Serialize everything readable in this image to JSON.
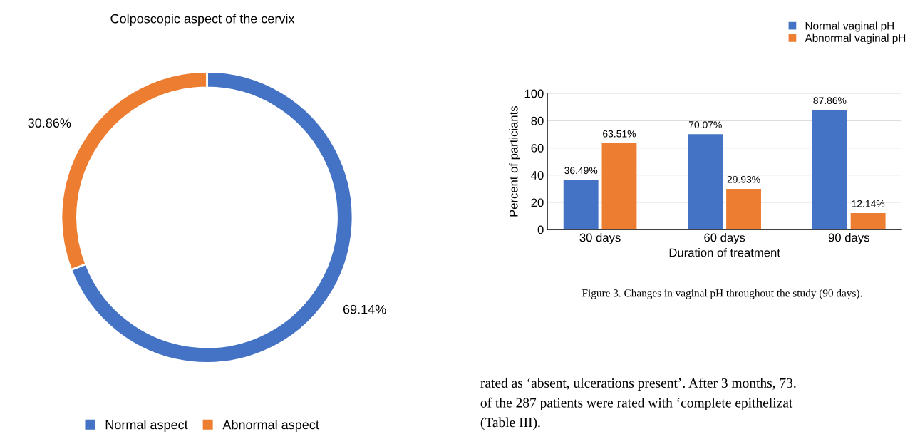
{
  "chart_data": [
    {
      "type": "donut",
      "title": "Colposcopic aspect of the cervix",
      "categories": [
        "Normal aspect",
        "Abnormal aspect"
      ],
      "values": [
        69.14,
        30.86
      ],
      "colors": [
        "#4472c4",
        "#ed7d31"
      ],
      "value_labels": [
        "69.14%",
        "30.86%"
      ],
      "legend": "bottom"
    },
    {
      "type": "bar",
      "categories": [
        "30 days",
        "60 days",
        "90 days"
      ],
      "xlabel": "Duration of treatment",
      "ylabel": "Percent of particiants",
      "ylim": [
        0,
        100
      ],
      "yticks": [
        0,
        20,
        40,
        60,
        80,
        100
      ],
      "grid": "y",
      "legend": "top right",
      "series": [
        {
          "name": "Normal vaginal pH",
          "color": "#4472c4",
          "values": [
            36.49,
            70.07,
            87.86
          ],
          "value_labels": [
            "36.49%",
            "70.07%",
            "87.86%"
          ]
        },
        {
          "name": "Abnormal vaginal pH",
          "color": "#ed7d31",
          "values": [
            63.51,
            29.93,
            12.14
          ],
          "value_labels": [
            "63.51%",
            "29.93%",
            "12.14%"
          ]
        }
      ],
      "annotations": [
        "Figure 3. Changes in vaginal pH throughout the study (90 days).",
        "rated as ‘absent, ulcerations present’. After 3 months, 73.",
        "of the 287 patients were rated with ‘complete epithelizat",
        "(Table III)."
      ]
    }
  ]
}
